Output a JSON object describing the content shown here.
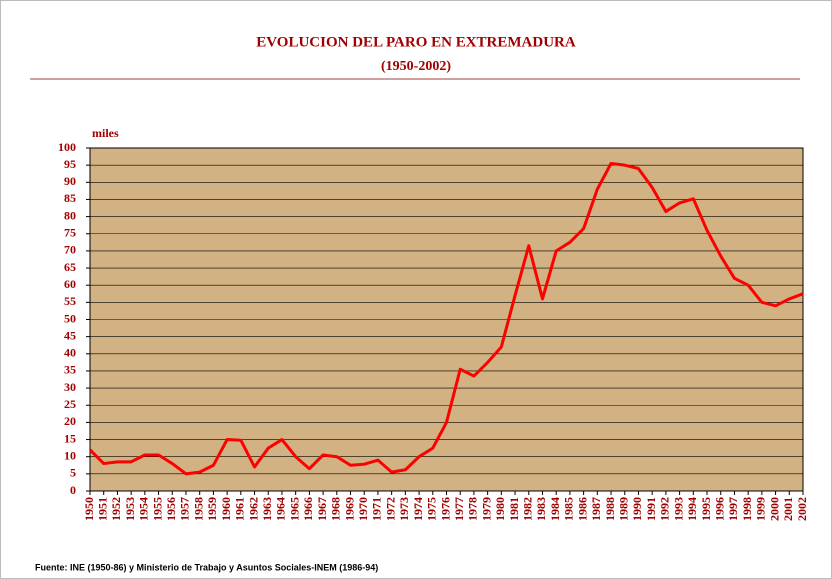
{
  "chart_data": {
    "type": "line",
    "title": "EVOLUCION DEL PARO EN EXTREMADURA",
    "subtitle": "(1950-2002)",
    "y_label": "miles",
    "source": "Fuente: INE (1950-86) y Ministerio de Trabajo y Asuntos Sociales-INEM (1986-94)",
    "categories": [
      "1950",
      "1951",
      "1952",
      "1953",
      "1954",
      "1955",
      "1956",
      "1957",
      "1958",
      "1959",
      "1960",
      "1961",
      "1962",
      "1963",
      "1964",
      "1965",
      "1966",
      "1967",
      "1968",
      "1969",
      "1970",
      "1971",
      "1972",
      "1973",
      "1974",
      "1975",
      "1976",
      "1977",
      "1978",
      "1979",
      "1980",
      "1981",
      "1982",
      "1983",
      "1984",
      "1985",
      "1986",
      "1987",
      "1988",
      "1989",
      "1990",
      "1991",
      "1992",
      "1993",
      "1994",
      "1995",
      "1996",
      "1997",
      "1998",
      "1999",
      "2000",
      "2001",
      "2002"
    ],
    "series": [
      {
        "color": "#ff0000",
        "values": [
          12,
          8,
          8.5,
          8.5,
          10.5,
          10.5,
          8,
          5,
          5.5,
          7.5,
          15,
          14.8,
          7,
          12.5,
          15,
          10,
          6.5,
          10.5,
          10,
          7.5,
          7.8,
          9,
          5.5,
          6.2,
          10,
          12.5,
          20,
          35.5,
          33.5,
          37.5,
          42,
          57,
          71.5,
          56,
          70,
          72.5,
          76.5,
          88,
          95.5,
          95,
          94,
          88.5,
          81.5,
          84,
          85.2,
          76,
          68.5,
          62,
          60,
          55,
          54,
          56,
          57.5
        ]
      }
    ],
    "ylim": [
      0,
      100
    ],
    "yticks": [
      0,
      5,
      10,
      15,
      20,
      25,
      30,
      35,
      40,
      45,
      50,
      55,
      60,
      65,
      70,
      75,
      80,
      85,
      90,
      95,
      100
    ],
    "grid": true,
    "plot_background": "#d2b183"
  }
}
